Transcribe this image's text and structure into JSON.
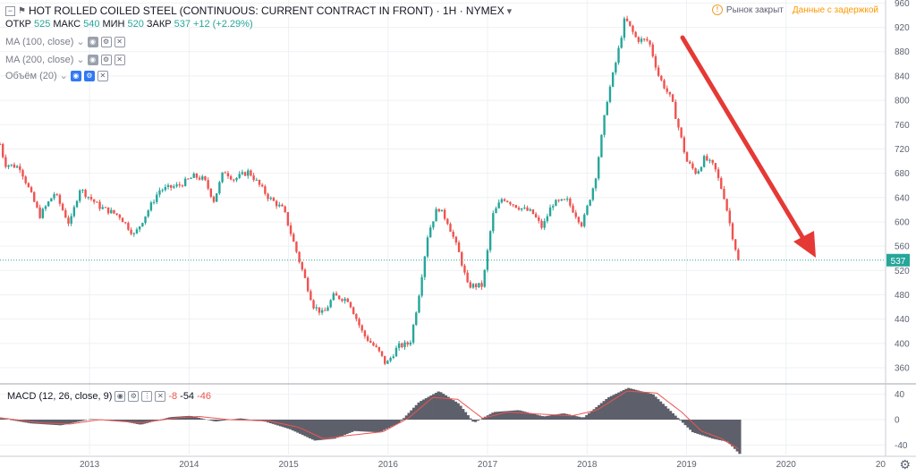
{
  "header": {
    "title": "HOT ROLLED COILED STEEL (CONTINUOUS: CURRENT CONTRACT IN FRONT) · 1H · NYMEX",
    "ohlc": [
      {
        "label": "ОТКР",
        "value": "525"
      },
      {
        "label": "МАКС",
        "value": "540"
      },
      {
        "label": "МИН",
        "value": "520"
      },
      {
        "label": "ЗАКР",
        "value": "537"
      }
    ],
    "change": "+12 (+2.29%)",
    "market_status": "Рынок закрыт",
    "delayed": "Данные с задержкой"
  },
  "indicators": [
    {
      "label": "MA (100, close)"
    },
    {
      "label": "MA (200, close)"
    },
    {
      "label": "Объём (20)"
    }
  ],
  "macd": {
    "label": "MACD (12, 26, close, 9)",
    "hist": "-8",
    "macd": "-54",
    "signal": "-46"
  },
  "colors": {
    "up": "#26a69a",
    "down": "#ef5350",
    "arrow": "#e53935",
    "histogram": "#5d606b",
    "signal": "#ef5350",
    "price_line": "#26a69a"
  },
  "chart_data": [
    {
      "type": "candlestick",
      "title": "",
      "xlabel": "",
      "ylabel": "",
      "x_ticks": [
        "2013",
        "2014",
        "2015",
        "2016",
        "2017",
        "2018",
        "2019",
        "2020",
        "20"
      ],
      "x_range": [
        2012.1,
        2021.0
      ],
      "y_ticks": [
        360,
        400,
        440,
        480,
        520,
        560,
        600,
        640,
        680,
        720,
        760,
        800,
        840,
        880,
        920,
        960
      ],
      "ylim": [
        335,
        965
      ],
      "last_price": 537,
      "price_path": [
        {
          "x": 2012.1,
          "y": 728
        },
        {
          "x": 2012.15,
          "y": 695
        },
        {
          "x": 2012.3,
          "y": 690
        },
        {
          "x": 2012.5,
          "y": 610
        },
        {
          "x": 2012.65,
          "y": 648
        },
        {
          "x": 2012.8,
          "y": 595
        },
        {
          "x": 2012.9,
          "y": 655
        },
        {
          "x": 2013.1,
          "y": 625
        },
        {
          "x": 2013.3,
          "y": 610
        },
        {
          "x": 2013.45,
          "y": 578
        },
        {
          "x": 2013.7,
          "y": 652
        },
        {
          "x": 2013.9,
          "y": 660
        },
        {
          "x": 2014.05,
          "y": 675
        },
        {
          "x": 2014.15,
          "y": 670
        },
        {
          "x": 2014.25,
          "y": 635
        },
        {
          "x": 2014.35,
          "y": 685
        },
        {
          "x": 2014.45,
          "y": 670
        },
        {
          "x": 2014.6,
          "y": 683
        },
        {
          "x": 2014.8,
          "y": 640
        },
        {
          "x": 2014.95,
          "y": 620
        },
        {
          "x": 2015.1,
          "y": 540
        },
        {
          "x": 2015.25,
          "y": 462
        },
        {
          "x": 2015.35,
          "y": 448
        },
        {
          "x": 2015.45,
          "y": 478
        },
        {
          "x": 2015.6,
          "y": 472
        },
        {
          "x": 2015.75,
          "y": 415
        },
        {
          "x": 2015.9,
          "y": 388
        },
        {
          "x": 2015.98,
          "y": 365
        },
        {
          "x": 2016.1,
          "y": 395
        },
        {
          "x": 2016.22,
          "y": 400
        },
        {
          "x": 2016.3,
          "y": 470
        },
        {
          "x": 2016.4,
          "y": 580
        },
        {
          "x": 2016.5,
          "y": 625
        },
        {
          "x": 2016.6,
          "y": 600
        },
        {
          "x": 2016.72,
          "y": 545
        },
        {
          "x": 2016.8,
          "y": 495
        },
        {
          "x": 2016.95,
          "y": 495
        },
        {
          "x": 2017.05,
          "y": 610
        },
        {
          "x": 2017.15,
          "y": 640
        },
        {
          "x": 2017.3,
          "y": 625
        },
        {
          "x": 2017.45,
          "y": 615
        },
        {
          "x": 2017.55,
          "y": 590
        },
        {
          "x": 2017.65,
          "y": 630
        },
        {
          "x": 2017.8,
          "y": 635
        },
        {
          "x": 2017.95,
          "y": 595
        },
        {
          "x": 2018.08,
          "y": 668
        },
        {
          "x": 2018.15,
          "y": 745
        },
        {
          "x": 2018.2,
          "y": 800
        },
        {
          "x": 2018.3,
          "y": 870
        },
        {
          "x": 2018.38,
          "y": 935
        },
        {
          "x": 2018.5,
          "y": 900
        },
        {
          "x": 2018.62,
          "y": 898
        },
        {
          "x": 2018.72,
          "y": 840
        },
        {
          "x": 2018.85,
          "y": 800
        },
        {
          "x": 2018.93,
          "y": 748
        },
        {
          "x": 2019.0,
          "y": 700
        },
        {
          "x": 2019.1,
          "y": 680
        },
        {
          "x": 2019.18,
          "y": 705
        },
        {
          "x": 2019.28,
          "y": 690
        },
        {
          "x": 2019.38,
          "y": 640
        },
        {
          "x": 2019.45,
          "y": 585
        },
        {
          "x": 2019.52,
          "y": 537
        }
      ]
    },
    {
      "type": "macd",
      "title": "",
      "y_ticks": [
        40,
        0,
        -40
      ],
      "ylim": [
        -55,
        55
      ],
      "x_range": [
        2012.1,
        2021.0
      ],
      "macd_path": [
        {
          "x": 2012.1,
          "y": 2
        },
        {
          "x": 2012.4,
          "y": -6
        },
        {
          "x": 2012.7,
          "y": -9
        },
        {
          "x": 2013.0,
          "y": 1
        },
        {
          "x": 2013.3,
          "y": -2
        },
        {
          "x": 2013.5,
          "y": -8
        },
        {
          "x": 2013.8,
          "y": 4
        },
        {
          "x": 2014.0,
          "y": 6
        },
        {
          "x": 2014.25,
          "y": -3
        },
        {
          "x": 2014.5,
          "y": 2
        },
        {
          "x": 2014.75,
          "y": -3
        },
        {
          "x": 2015.0,
          "y": -15
        },
        {
          "x": 2015.25,
          "y": -33
        },
        {
          "x": 2015.45,
          "y": -30
        },
        {
          "x": 2015.65,
          "y": -18
        },
        {
          "x": 2015.9,
          "y": -20
        },
        {
          "x": 2016.1,
          "y": -5
        },
        {
          "x": 2016.3,
          "y": 28
        },
        {
          "x": 2016.5,
          "y": 45
        },
        {
          "x": 2016.7,
          "y": 25
        },
        {
          "x": 2016.85,
          "y": -5
        },
        {
          "x": 2017.05,
          "y": 12
        },
        {
          "x": 2017.3,
          "y": 15
        },
        {
          "x": 2017.55,
          "y": 5
        },
        {
          "x": 2017.75,
          "y": 10
        },
        {
          "x": 2017.95,
          "y": 3
        },
        {
          "x": 2018.2,
          "y": 35
        },
        {
          "x": 2018.4,
          "y": 50
        },
        {
          "x": 2018.65,
          "y": 40
        },
        {
          "x": 2018.85,
          "y": 10
        },
        {
          "x": 2019.05,
          "y": -20
        },
        {
          "x": 2019.25,
          "y": -30
        },
        {
          "x": 2019.4,
          "y": -35
        },
        {
          "x": 2019.52,
          "y": -54
        }
      ],
      "signal_path": [
        {
          "x": 2012.1,
          "y": 3
        },
        {
          "x": 2012.5,
          "y": -5
        },
        {
          "x": 2012.8,
          "y": -7
        },
        {
          "x": 2013.1,
          "y": 0
        },
        {
          "x": 2013.5,
          "y": -5
        },
        {
          "x": 2013.9,
          "y": 3
        },
        {
          "x": 2014.1,
          "y": 5
        },
        {
          "x": 2014.4,
          "y": 0
        },
        {
          "x": 2014.8,
          "y": -2
        },
        {
          "x": 2015.1,
          "y": -12
        },
        {
          "x": 2015.35,
          "y": -30
        },
        {
          "x": 2015.6,
          "y": -25
        },
        {
          "x": 2015.95,
          "y": -19
        },
        {
          "x": 2016.2,
          "y": 2
        },
        {
          "x": 2016.45,
          "y": 35
        },
        {
          "x": 2016.7,
          "y": 32
        },
        {
          "x": 2016.95,
          "y": 2
        },
        {
          "x": 2017.2,
          "y": 12
        },
        {
          "x": 2017.5,
          "y": 9
        },
        {
          "x": 2017.85,
          "y": 6
        },
        {
          "x": 2018.1,
          "y": 15
        },
        {
          "x": 2018.4,
          "y": 45
        },
        {
          "x": 2018.7,
          "y": 42
        },
        {
          "x": 2018.95,
          "y": 12
        },
        {
          "x": 2019.15,
          "y": -18
        },
        {
          "x": 2019.35,
          "y": -30
        },
        {
          "x": 2019.52,
          "y": -46
        }
      ]
    }
  ]
}
